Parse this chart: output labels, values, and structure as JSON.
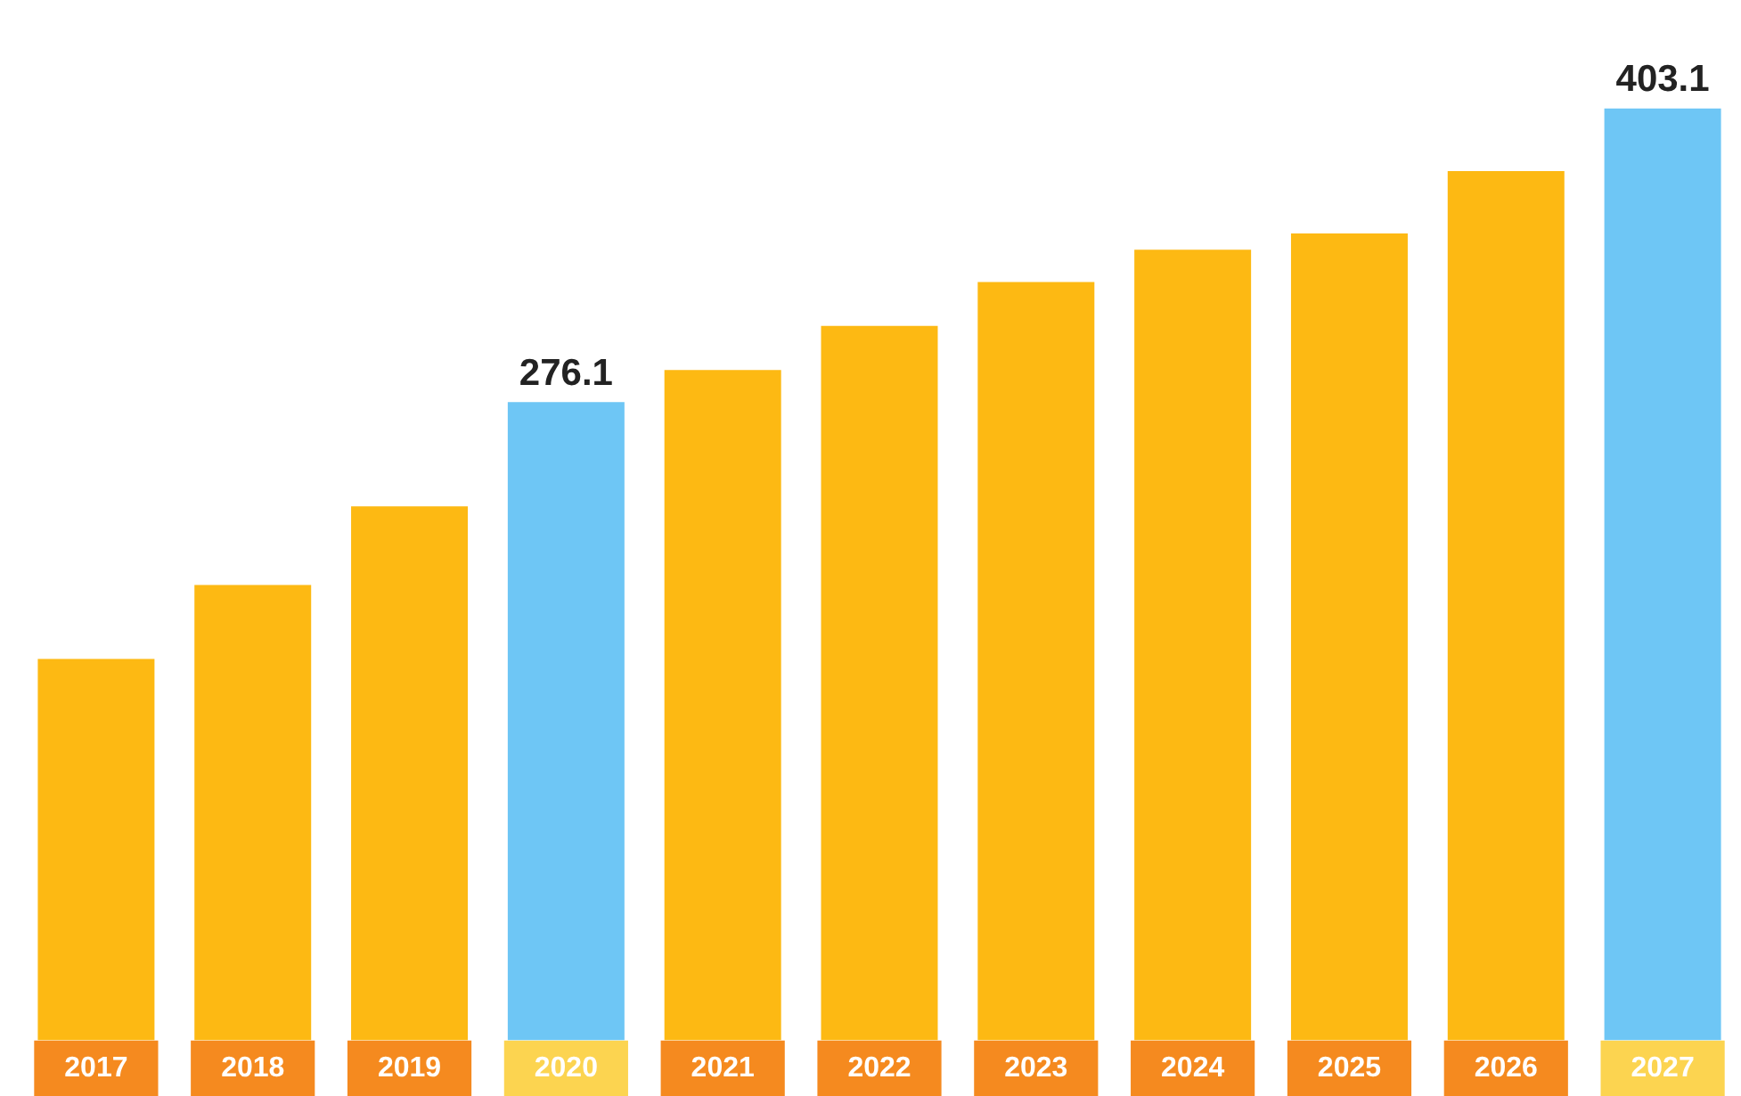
{
  "chart_data": {
    "type": "bar",
    "categories": [
      "2017",
      "2018",
      "2019",
      "2020",
      "2021",
      "2022",
      "2023",
      "2024",
      "2025",
      "2026",
      "2027"
    ],
    "values": [
      165,
      197,
      231,
      276.1,
      290,
      309,
      328,
      342,
      349,
      376,
      403.1
    ],
    "colors": [
      "#fdb913",
      "#fdb913",
      "#fdb913",
      "#6ec6f5",
      "#fdb913",
      "#fdb913",
      "#fdb913",
      "#fdb913",
      "#fdb913",
      "#fdb913",
      "#6ec6f5"
    ],
    "value_labels": [
      null,
      null,
      null,
      "276.1",
      null,
      null,
      null,
      null,
      null,
      null,
      "403.1"
    ],
    "tick_labels": "x",
    "grid": false,
    "legend": false
  }
}
